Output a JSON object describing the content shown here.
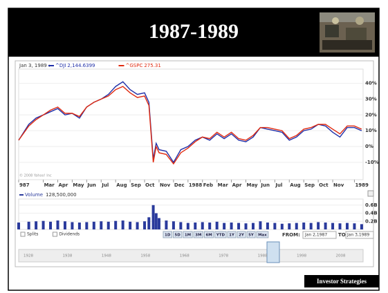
{
  "slide": {
    "title": "1987-1989",
    "footer": "Investor Strategies"
  },
  "chart_data": [
    {
      "type": "line",
      "date_label": "Jan 3, 1989 :",
      "series": [
        {
          "name": "^DJI",
          "quote": "2,144.6399",
          "color": "#1f2fa8",
          "values": [
            4,
            14,
            18,
            20,
            22,
            24,
            20,
            21,
            18,
            25,
            28,
            30,
            33,
            38,
            41,
            36,
            33,
            34,
            28,
            -8,
            2,
            -2,
            -3,
            -10,
            -2,
            0,
            4,
            6,
            4,
            8,
            5,
            8,
            4,
            3,
            6,
            12,
            11,
            10,
            9,
            4,
            6,
            10,
            11,
            14,
            13,
            9,
            6,
            12,
            12,
            10
          ]
        },
        {
          "name": "^GSPC",
          "quote": "275.31",
          "color": "#e02a10",
          "values": [
            4,
            13,
            17,
            20,
            23,
            25,
            21,
            21,
            19,
            25,
            28,
            30,
            32,
            36,
            38,
            34,
            31,
            32,
            26,
            -10,
            0,
            -4,
            -5,
            -11,
            -4,
            -1,
            3,
            6,
            5,
            9,
            6,
            9,
            5,
            4,
            7,
            12,
            12,
            11,
            10,
            5,
            7,
            11,
            12,
            14,
            14,
            11,
            8,
            13,
            13,
            11
          ]
        }
      ],
      "x": [
        0.3,
        1,
        1.5,
        2,
        2.5,
        3,
        3.5,
        4,
        4.5,
        5,
        5.5,
        6,
        6.5,
        7,
        7.5,
        8,
        8.5,
        9,
        9.3,
        9.6,
        9.8,
        10,
        10.5,
        11,
        11.5,
        12,
        12.5,
        13,
        13.5,
        14,
        14.5,
        15,
        15.5,
        16,
        16.5,
        17,
        17.5,
        18,
        18.5,
        19,
        19.5,
        20,
        20.5,
        21,
        21.5,
        22,
        22.5,
        23,
        23.5,
        24
      ],
      "xlim": [
        0.3,
        24.1
      ],
      "xticks": [
        {
          "value": 0.3,
          "label": "987"
        },
        {
          "value": 2,
          "label": "Mar"
        },
        {
          "value": 3,
          "label": "Apr"
        },
        {
          "value": 4,
          "label": "May"
        },
        {
          "value": 5,
          "label": "Jun"
        },
        {
          "value": 6,
          "label": "Jul"
        },
        {
          "value": 7,
          "label": "Aug"
        },
        {
          "value": 8,
          "label": "Sep"
        },
        {
          "value": 9,
          "label": "Oct"
        },
        {
          "value": 10,
          "label": "Nov"
        },
        {
          "value": 11,
          "label": "Dec"
        },
        {
          "value": 12,
          "label": "1988"
        },
        {
          "value": 13,
          "label": "Feb"
        },
        {
          "value": 14,
          "label": "Mar"
        },
        {
          "value": 15,
          "label": "Apr"
        },
        {
          "value": 16,
          "label": "May"
        },
        {
          "value": 17,
          "label": "Jun"
        },
        {
          "value": 18,
          "label": "Jul"
        },
        {
          "value": 19,
          "label": "Aug"
        },
        {
          "value": 20,
          "label": "Sep"
        },
        {
          "value": 21,
          "label": "Oct"
        },
        {
          "value": 22,
          "label": "Nov"
        },
        {
          "value": 23.5,
          "label": "1989"
        }
      ],
      "ylim": [
        -21,
        49
      ],
      "yticks": [
        {
          "value": 40,
          "label": "40%"
        },
        {
          "value": 30,
          "label": "30%"
        },
        {
          "value": 20,
          "label": "20%"
        },
        {
          "value": 10,
          "label": "10%"
        },
        {
          "value": 0,
          "label": "0%"
        },
        {
          "value": -10,
          "label": "-10%"
        }
      ],
      "grid": true,
      "copyright": "© 2008 Yahoo! Inc"
    },
    {
      "type": "bar",
      "title": "Volume",
      "current": "128,500,000",
      "color": "#2a3a9c",
      "x": [
        0.3,
        1,
        1.5,
        2,
        2.5,
        3,
        3.5,
        4,
        4.5,
        5,
        5.5,
        6,
        6.5,
        7,
        7.5,
        8,
        8.5,
        9,
        9.3,
        9.6,
        9.8,
        10,
        10.5,
        11,
        11.5,
        12,
        12.5,
        13,
        13.5,
        14,
        14.5,
        15,
        15.5,
        16,
        16.5,
        17,
        17.5,
        18,
        18.5,
        19,
        19.5,
        20,
        20.5,
        21,
        21.5,
        22,
        22.5,
        23,
        23.5,
        24
      ],
      "values": [
        0.17,
        0.19,
        0.2,
        0.21,
        0.19,
        0.22,
        0.2,
        0.18,
        0.17,
        0.18,
        0.19,
        0.2,
        0.19,
        0.21,
        0.22,
        0.19,
        0.18,
        0.2,
        0.3,
        0.6,
        0.4,
        0.28,
        0.22,
        0.2,
        0.18,
        0.16,
        0.17,
        0.18,
        0.17,
        0.19,
        0.16,
        0.17,
        0.16,
        0.15,
        0.16,
        0.2,
        0.17,
        0.16,
        0.14,
        0.15,
        0.16,
        0.17,
        0.16,
        0.18,
        0.17,
        0.16,
        0.15,
        0.16,
        0.15,
        0.13
      ],
      "xlim": [
        0.3,
        24.1
      ],
      "ylim": [
        0,
        0.75
      ],
      "yticks": [
        {
          "value": 0.6,
          "label": "0.6B"
        },
        {
          "value": 0.4,
          "label": "0.4B"
        },
        {
          "value": 0.2,
          "label": "0.2B"
        }
      ]
    }
  ],
  "controls": {
    "checks": [
      "Splits",
      "Dividends"
    ],
    "ranges": [
      "1D",
      "5D",
      "1M",
      "3M",
      "6M",
      "YTD",
      "1Y",
      "2Y",
      "5Y",
      "Max"
    ],
    "from_label": "FROM:",
    "from": "Jan 2,1987",
    "to_label": "TO:",
    "to": "Jan 3,1989",
    "timeline": [
      "1928",
      "1938",
      "1948",
      "1958",
      "1968",
      "1978",
      "1988",
      "1998",
      "2008"
    ]
  }
}
